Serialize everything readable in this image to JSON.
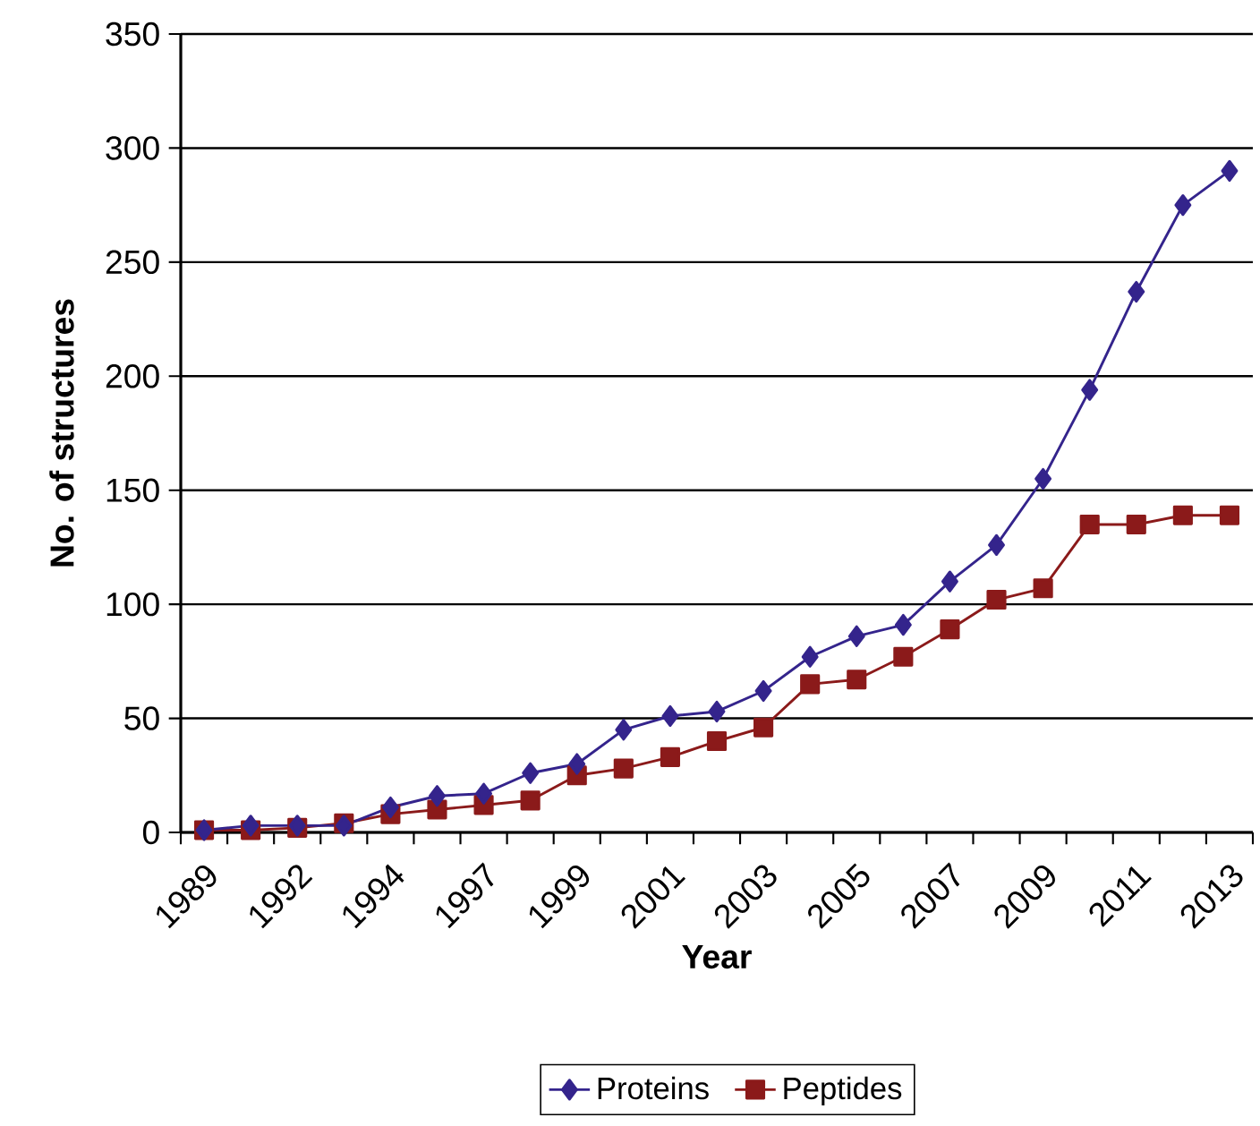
{
  "chart_data": {
    "type": "line",
    "xlabel": "Year",
    "ylabel": "No. of structures",
    "categories": [
      "1989",
      null,
      "1992",
      null,
      "1994",
      null,
      "1997",
      null,
      "1999",
      null,
      "2001",
      null,
      "2003",
      null,
      "2005",
      null,
      "2007",
      null,
      "2009",
      null,
      "2011",
      null,
      "2013"
    ],
    "series": [
      {
        "name": "Proteins",
        "color": "#34248c",
        "marker": "diamond",
        "values": [
          1,
          3,
          3,
          3,
          11,
          16,
          17,
          26,
          30,
          45,
          51,
          53,
          62,
          77,
          86,
          91,
          110,
          126,
          155,
          194,
          237,
          275,
          290
        ]
      },
      {
        "name": "Peptides",
        "color": "#8b1a1a",
        "marker": "square",
        "values": [
          1,
          1,
          2,
          4,
          8,
          10,
          12,
          14,
          25,
          28,
          33,
          40,
          46,
          65,
          67,
          77,
          89,
          102,
          107,
          135,
          135,
          139,
          139
        ]
      }
    ],
    "ylim": [
      0,
      350
    ],
    "yticks": [
      0,
      50,
      100,
      150,
      200,
      250,
      300,
      350
    ],
    "grid": "y",
    "legend": "bottom",
    "line_style": "solid"
  }
}
